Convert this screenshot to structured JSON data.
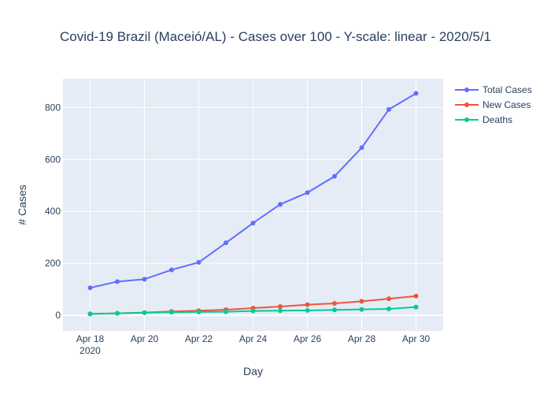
{
  "chart_data": {
    "type": "line",
    "title": "Covid-19 Brazil (Maceió/AL) - Cases over 100 - Y-scale: linear - 2020/5/1",
    "xlabel": "Day",
    "ylabel": "# Cases",
    "x": [
      "2020-04-18",
      "2020-04-19",
      "2020-04-20",
      "2020-04-21",
      "2020-04-22",
      "2020-04-23",
      "2020-04-24",
      "2020-04-25",
      "2020-04-26",
      "2020-04-27",
      "2020-04-28",
      "2020-04-29",
      "2020-04-30"
    ],
    "x_ticks": [
      {
        "date": "2020-04-18",
        "label": "Apr 18",
        "sublabel": "2020"
      },
      {
        "date": "2020-04-20",
        "label": "Apr 20",
        "sublabel": ""
      },
      {
        "date": "2020-04-22",
        "label": "Apr 22",
        "sublabel": ""
      },
      {
        "date": "2020-04-24",
        "label": "Apr 24",
        "sublabel": ""
      },
      {
        "date": "2020-04-26",
        "label": "Apr 26",
        "sublabel": ""
      },
      {
        "date": "2020-04-28",
        "label": "Apr 28",
        "sublabel": ""
      },
      {
        "date": "2020-04-30",
        "label": "Apr 30",
        "sublabel": ""
      }
    ],
    "xlim": [
      "2020-04-17",
      "2020-05-01"
    ],
    "y_ticks": [
      0,
      200,
      400,
      600,
      800
    ],
    "ylim": [
      -60,
      910
    ],
    "grid": true,
    "legend_position": "top-right",
    "series": [
      {
        "name": "Total Cases",
        "color": "#636efa",
        "values": [
          106,
          130,
          139,
          175,
          204,
          279,
          355,
          427,
          472,
          535,
          645,
          792,
          854
        ]
      },
      {
        "name": "New Cases",
        "color": "#ef553b",
        "values": [
          6,
          8,
          11,
          15,
          18,
          22,
          28,
          34,
          41,
          46,
          54,
          64,
          74
        ]
      },
      {
        "name": "Deaths",
        "color": "#00cc96",
        "values": [
          5,
          8,
          10,
          12,
          13,
          14,
          17,
          18,
          19,
          21,
          23,
          25,
          32
        ]
      }
    ]
  }
}
